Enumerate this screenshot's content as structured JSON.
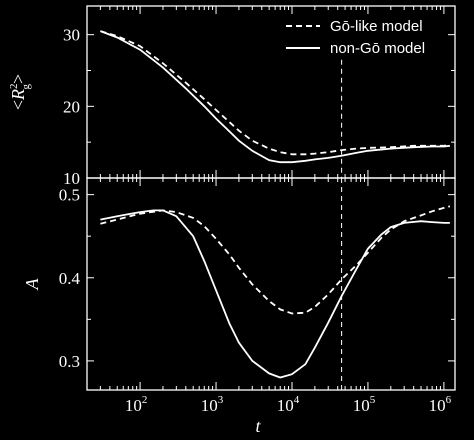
{
  "chart_data": [
    {
      "type": "line",
      "ylabel": "<R_g^2>",
      "ylabel_parts": {
        "open": "<",
        "symbol": "R",
        "sup": "2",
        "sub": "g",
        "close": ">"
      },
      "ylim": [
        10,
        34
      ],
      "yticks": [
        10,
        20,
        30
      ],
      "xscale": "log",
      "xlim": [
        20,
        1400000
      ],
      "legend": {
        "placement": "top-right"
      },
      "vline": 45000,
      "series": [
        {
          "name": "Gō-like model",
          "style": "dashed",
          "x": [
            30,
            50,
            100,
            200,
            400,
            700,
            1000,
            1500,
            2000,
            3000,
            5000,
            7000,
            10000,
            15000,
            20000,
            30000,
            45000,
            70000,
            100000,
            200000,
            400000,
            700000,
            1000000,
            1200000
          ],
          "y": [
            30.5,
            29.8,
            28.4,
            26.0,
            23.3,
            21.0,
            19.5,
            17.8,
            16.6,
            15.2,
            14.1,
            13.6,
            13.3,
            13.3,
            13.4,
            13.6,
            13.9,
            14.1,
            14.2,
            14.3,
            14.5,
            14.5,
            14.5,
            14.6
          ]
        },
        {
          "name": "non-Gō model",
          "style": "solid",
          "x": [
            30,
            50,
            100,
            200,
            400,
            700,
            1000,
            1500,
            2000,
            3000,
            5000,
            7000,
            10000,
            15000,
            20000,
            30000,
            45000,
            70000,
            100000,
            200000,
            400000,
            700000,
            1000000,
            1200000
          ],
          "y": [
            30.5,
            29.6,
            27.9,
            25.4,
            22.5,
            20.0,
            18.3,
            16.5,
            15.2,
            13.8,
            12.5,
            12.2,
            12.2,
            12.4,
            12.6,
            12.8,
            13.1,
            13.5,
            13.8,
            14.1,
            14.3,
            14.4,
            14.4,
            14.5
          ]
        }
      ]
    },
    {
      "type": "line",
      "xlabel": "t",
      "ylabel": "A",
      "ylim": [
        0.265,
        0.52
      ],
      "yticks": [
        0.3,
        0.4,
        0.5
      ],
      "ytick_labels": [
        "0.3",
        "0.4",
        "0.5"
      ],
      "xscale": "log",
      "xlim": [
        20,
        1400000
      ],
      "xticks": [
        100,
        1000,
        10000,
        100000,
        1000000
      ],
      "xtick_labels": [
        {
          "base": "10",
          "exp": "2"
        },
        {
          "base": "10",
          "exp": "3"
        },
        {
          "base": "10",
          "exp": "4"
        },
        {
          "base": "10",
          "exp": "5"
        },
        {
          "base": "10",
          "exp": "6"
        }
      ],
      "vline": 45000,
      "series": [
        {
          "name": "Gō-like model",
          "style": "dashed",
          "x": [
            30,
            50,
            100,
            200,
            300,
            500,
            700,
            1000,
            1500,
            2000,
            3000,
            5000,
            7000,
            10000,
            15000,
            20000,
            30000,
            45000,
            70000,
            100000,
            150000,
            200000,
            300000,
            500000,
            700000,
            1000000,
            1200000
          ],
          "y": [
            0.465,
            0.47,
            0.477,
            0.481,
            0.479,
            0.472,
            0.462,
            0.447,
            0.428,
            0.412,
            0.392,
            0.372,
            0.362,
            0.357,
            0.358,
            0.365,
            0.38,
            0.398,
            0.415,
            0.43,
            0.448,
            0.458,
            0.468,
            0.475,
            0.48,
            0.484,
            0.486
          ]
        },
        {
          "name": "non-Gō model",
          "style": "solid",
          "x": [
            30,
            50,
            100,
            150,
            200,
            300,
            500,
            700,
            1000,
            1500,
            2000,
            3000,
            5000,
            7000,
            10000,
            15000,
            20000,
            30000,
            45000,
            70000,
            100000,
            150000,
            200000,
            300000,
            500000,
            700000,
            1000000,
            1200000
          ],
          "y": [
            0.47,
            0.474,
            0.479,
            0.481,
            0.481,
            0.474,
            0.45,
            0.42,
            0.385,
            0.345,
            0.322,
            0.3,
            0.285,
            0.28,
            0.284,
            0.296,
            0.316,
            0.346,
            0.378,
            0.41,
            0.435,
            0.452,
            0.461,
            0.466,
            0.468,
            0.467,
            0.466,
            0.466
          ]
        }
      ]
    }
  ]
}
